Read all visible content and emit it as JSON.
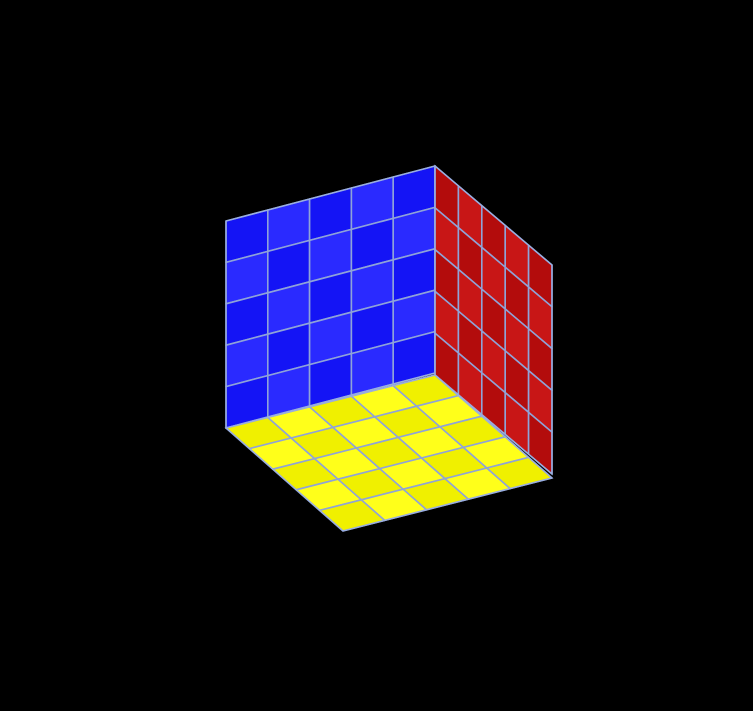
{
  "puzzle": {
    "grid_size": 5,
    "background": "#000000",
    "grid_line_color": "#8fa3d8",
    "faces": {
      "front": {
        "color": "#1414f5",
        "highlight": "#2a2aff"
      },
      "right": {
        "color": "#b30c0c",
        "highlight": "#c81616"
      },
      "bottom": {
        "color": "#f0f000",
        "highlight": "#ffff1a"
      }
    }
  }
}
